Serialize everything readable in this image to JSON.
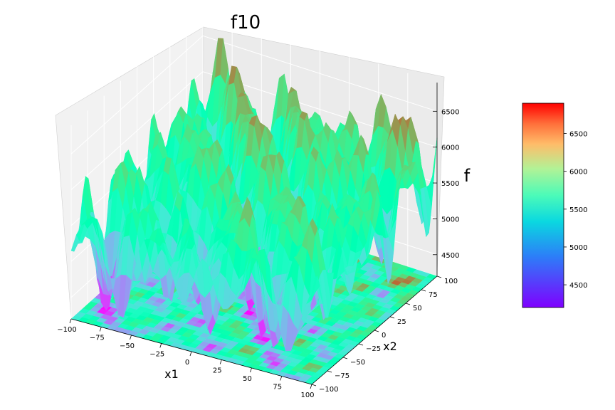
{
  "chart_data": {
    "type": "surface3d",
    "title": "f10",
    "xlabel": "x1",
    "ylabel": "x2",
    "zlabel": "f",
    "xlim": [
      -100,
      100
    ],
    "ylim": [
      -100,
      100
    ],
    "zlim": [
      4200,
      6900
    ],
    "x_ticks": [
      "−100",
      "−75",
      "−50",
      "−25",
      "0",
      "25",
      "50",
      "75",
      "100"
    ],
    "y_ticks": [
      "−100",
      "−75",
      "−50",
      "−25",
      "0",
      "25",
      "50",
      "75",
      "100"
    ],
    "z_ticks": [
      "4500",
      "5000",
      "5500",
      "6000",
      "6500"
    ],
    "z_tick_values": [
      4500,
      5000,
      5500,
      6000,
      6500
    ],
    "colorbar_ticks": [
      "4500",
      "5000",
      "5500",
      "6000",
      "6500"
    ],
    "colorbar_range": [
      4200,
      6900
    ],
    "colormap": "rainbow",
    "grid": true,
    "contour_projection": "bottom"
  }
}
